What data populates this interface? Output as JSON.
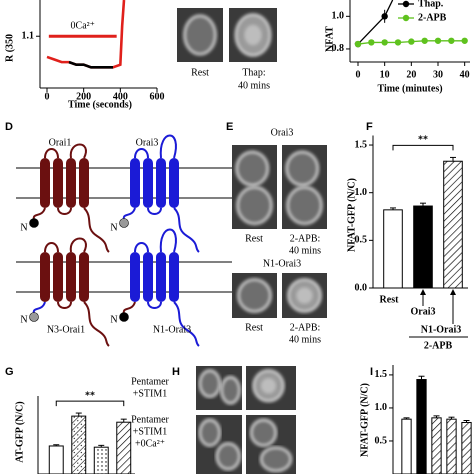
{
  "chart_data": [
    {
      "type": "line",
      "ylabel": "R (350",
      "xlabel": "Time (seconds)",
      "annotation": {
        "text": "0Ca²⁺",
        "x": [
          10,
          380
        ],
        "y": 1.1,
        "color": "#e0201b"
      },
      "x": [
        0,
        40,
        80,
        120,
        160,
        200,
        240,
        280,
        320,
        360,
        400,
        410,
        420
      ],
      "series": [
        {
          "color": "#e0201b",
          "values": [
            1.06,
            1.055,
            1.05,
            1.05,
            1.045,
            1.045,
            1.04,
            1.04,
            1.04,
            1.04,
            1.045,
            1.12,
            1.17
          ]
        },
        {
          "color": "#000000",
          "values": [
            null,
            null,
            null,
            1.05,
            1.045,
            1.045,
            1.04,
            1.04,
            1.04,
            1.04,
            null,
            null,
            null
          ]
        }
      ],
      "xlim": [
        0,
        600
      ],
      "ylim": [
        1.0,
        1.17
      ],
      "xticks": [
        0,
        200,
        400,
        600
      ],
      "yticks": [
        1.1
      ]
    },
    {
      "type": "line",
      "ylabel": "NFAT",
      "xlabel": "Time (minutes)",
      "legend": "upper right",
      "markers": true,
      "series": [
        {
          "name": "Thap.",
          "color": "#000000",
          "x": [
            0,
            10,
            13
          ],
          "values": [
            0.83,
            1.0,
            1.1
          ],
          "errors": [
            null,
            0.04,
            null
          ]
        },
        {
          "name": "2-APB",
          "color": "#5fc21e",
          "x": [
            0,
            5,
            10,
            15,
            20,
            25,
            30,
            35,
            40
          ],
          "values": [
            0.83,
            0.84,
            0.84,
            0.84,
            0.845,
            0.85,
            0.85,
            0.85,
            0.85
          ]
        }
      ],
      "xlim": [
        -3,
        42
      ],
      "ylim": [
        0.72,
        1.1
      ],
      "xticks": [
        0,
        10,
        20,
        30,
        40
      ],
      "yticks": [
        0.8,
        {
          "value": 1,
          "label": "1.0"
        }
      ]
    },
    {
      "type": "bar",
      "ylabel": "NFAT-GFP (N/C)",
      "categories": [
        "Rest",
        "Orai3",
        "N1-Orai3"
      ],
      "group_label": "2-APB",
      "significance": "**",
      "values": [
        0.82,
        0.86,
        1.33
      ],
      "errors": [
        0.02,
        0.03,
        0.04
      ],
      "fills": [
        "white",
        "black",
        "hatch"
      ],
      "ylim": [
        0,
        1.6
      ],
      "yticks": [
        {
          "value": 0,
          "label": "0.0"
        },
        0.5,
        {
          "value": 1,
          "label": "1.0"
        },
        1.5
      ]
    },
    {
      "type": "bar",
      "ylabel": "AT-GFP (N/C)",
      "significance": "**",
      "values": [
        0.78,
        1.27,
        0.76,
        1.17
      ],
      "errors": [
        0.02,
        0.05,
        0.03,
        0.05
      ],
      "fills": [
        "white",
        "dots-hatch",
        "dots",
        "hatch"
      ],
      "ylim": [
        0.32,
        1.6
      ]
    },
    {
      "type": "bar",
      "ylabel": "NFAT-GFP (N/C)",
      "values": [
        0.83,
        1.43,
        0.85,
        0.83,
        0.78
      ],
      "errors": [
        0.02,
        0.05,
        0.03,
        0.03,
        0.03
      ],
      "fills": [
        "white",
        "black",
        "hatch",
        "hatch",
        "hatch"
      ],
      "ylim": [
        0,
        1.65
      ],
      "yticks": [
        0.5,
        {
          "value": 1,
          "label": "1.0"
        },
        1.5
      ]
    }
  ],
  "panel_labels": [
    "D",
    "E",
    "F",
    "G",
    "H",
    "I"
  ],
  "images_top": {
    "captions": [
      [
        "Rest"
      ],
      [
        "Thap:",
        "40 mins"
      ]
    ]
  },
  "diagram": {
    "orai1": "Orai1",
    "orai3": "Orai3",
    "n_labels": [
      "N",
      "N",
      "N",
      "N"
    ],
    "n3_orai1": "N3-Orai1",
    "n1_orai3": "N1-Orai3"
  },
  "panel_e": {
    "titles": [
      "Orai3",
      "N1-Orai3"
    ],
    "captions": [
      [
        "Rest"
      ],
      [
        "2-APB:",
        "40 mins"
      ],
      [
        "Rest"
      ],
      [
        "2-APB:",
        "40 mins"
      ]
    ]
  },
  "panel_h": {
    "labels": [
      [
        "Pentamer",
        "+STIM1"
      ],
      [
        "Pentamer",
        "+STIM1",
        "+0Ca²⁺"
      ]
    ]
  }
}
